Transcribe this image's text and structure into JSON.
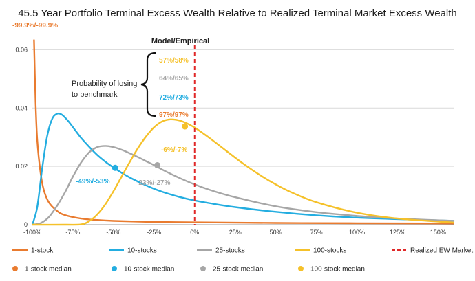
{
  "chart_data": {
    "type": "line",
    "title": "45.5 Year Portfolio Terminal Excess Wealth Relative to Realized Terminal Market Excess Wealth",
    "xlabel": "",
    "ylabel": "",
    "xlim": [
      -1.0,
      1.6
    ],
    "ylim": [
      0,
      0.07
    ],
    "x_ticks": [
      "-100%",
      "-75%",
      "-50%",
      "-25%",
      "0%",
      "25%",
      "50%",
      "75%",
      "100%",
      "125%",
      "150%"
    ],
    "x_tick_values": [
      -1.0,
      -0.75,
      -0.5,
      -0.25,
      0.0,
      0.25,
      0.5,
      0.75,
      1.0,
      1.25,
      1.5
    ],
    "y_ticks": [
      "0",
      "0.02",
      "0.04",
      "0.06"
    ],
    "y_tick_values": [
      0,
      0.02,
      0.04,
      0.06
    ],
    "grid": "horizontal",
    "colors": {
      "one_stock": "#E97B2F",
      "ten_stocks": "#23ADE0",
      "twentyfive_stocks": "#A6A6A6",
      "hundred_stocks": "#F5C12A",
      "market": "#E02828"
    },
    "series": [
      {
        "name": "1-stock",
        "color": "#E97B2F",
        "x": [
          -0.99,
          -0.98,
          -0.97,
          -0.95,
          -0.93,
          -0.9,
          -0.85,
          -0.8,
          -0.7,
          -0.6,
          -0.5,
          -0.3,
          0.0,
          0.5,
          1.0,
          1.6
        ],
        "y": [
          0.0635,
          0.042,
          0.029,
          0.018,
          0.012,
          0.0078,
          0.0048,
          0.0033,
          0.0021,
          0.0016,
          0.0013,
          0.001,
          0.0008,
          0.0006,
          0.0005,
          0.0004
        ]
      },
      {
        "name": "10-stocks",
        "color": "#23ADE0",
        "x": [
          -1.0,
          -0.97,
          -0.94,
          -0.91,
          -0.88,
          -0.85,
          -0.82,
          -0.78,
          -0.74,
          -0.7,
          -0.65,
          -0.6,
          -0.55,
          -0.5,
          -0.45,
          -0.4,
          -0.35,
          -0.3,
          -0.25,
          -0.2,
          -0.1,
          0.0,
          0.1,
          0.25,
          0.5,
          0.75,
          1.0,
          1.25,
          1.6
        ],
        "y": [
          0.0,
          0.006,
          0.019,
          0.03,
          0.036,
          0.038,
          0.0378,
          0.0356,
          0.0327,
          0.0298,
          0.0267,
          0.0239,
          0.0216,
          0.0196,
          0.0178,
          0.0162,
          0.0148,
          0.0135,
          0.0123,
          0.0113,
          0.0096,
          0.0083,
          0.0073,
          0.006,
          0.0044,
          0.0032,
          0.0024,
          0.0019,
          0.0013
        ]
      },
      {
        "name": "25-stocks",
        "color": "#A6A6A6",
        "x": [
          -1.0,
          -0.95,
          -0.9,
          -0.85,
          -0.8,
          -0.75,
          -0.7,
          -0.65,
          -0.6,
          -0.55,
          -0.5,
          -0.45,
          -0.4,
          -0.35,
          -0.3,
          -0.25,
          -0.2,
          -0.1,
          0.0,
          0.1,
          0.25,
          0.5,
          0.75,
          1.0,
          1.25,
          1.6
        ],
        "y": [
          0.0,
          0.0005,
          0.0025,
          0.0063,
          0.011,
          0.0165,
          0.0213,
          0.0248,
          0.0266,
          0.027,
          0.0266,
          0.0257,
          0.0245,
          0.0232,
          0.0218,
          0.0204,
          0.0189,
          0.0162,
          0.0138,
          0.0118,
          0.0094,
          0.0063,
          0.0043,
          0.003,
          0.0021,
          0.0013
        ]
      },
      {
        "name": "100-stocks",
        "color": "#F5C12A",
        "x": [
          -1.0,
          -0.8,
          -0.7,
          -0.65,
          -0.6,
          -0.55,
          -0.5,
          -0.45,
          -0.4,
          -0.35,
          -0.3,
          -0.25,
          -0.2,
          -0.15,
          -0.1,
          -0.05,
          0.0,
          0.05,
          0.1,
          0.2,
          0.3,
          0.4,
          0.5,
          0.6,
          0.75,
          1.0,
          1.25,
          1.6
        ],
        "y": [
          0.0,
          0.0,
          0.0001,
          0.0012,
          0.0035,
          0.007,
          0.0115,
          0.0165,
          0.0215,
          0.0262,
          0.0302,
          0.0334,
          0.0354,
          0.0361,
          0.0358,
          0.0348,
          0.0333,
          0.0314,
          0.0294,
          0.0251,
          0.0209,
          0.0171,
          0.0138,
          0.011,
          0.0077,
          0.0041,
          0.0021,
          0.0007
        ]
      }
    ],
    "market_line": {
      "name": "Realized EW Market",
      "x": 0.0,
      "color": "#E02828"
    },
    "medians": [
      {
        "name": "10-stock median",
        "x": -0.49,
        "y": 0.0195,
        "label": "-49%/-53%",
        "color": "#23ADE0"
      },
      {
        "name": "25-stock median",
        "x": -0.23,
        "y": 0.0204,
        "label": "-23%/-27%",
        "color": "#A6A6A6"
      },
      {
        "name": "100-stock median",
        "x": -0.06,
        "y": 0.0337,
        "label": "-6%/-7%",
        "color": "#F5C12A"
      }
    ],
    "one_stock_annotation": {
      "label": "-99.9%/-99.9%",
      "color": "#E97B2F"
    },
    "probability_box": {
      "heading": "Model/Empirical",
      "caption_line1": "Probability of losing",
      "caption_line2": "to benchmark",
      "entries": [
        {
          "label": "57%/58%",
          "color": "#F5C12A"
        },
        {
          "label": "64%/65%",
          "color": "#A6A6A6"
        },
        {
          "label": "72%/73%",
          "color": "#23ADE0"
        },
        {
          "label": "97%/97%",
          "color": "#E97B2F"
        }
      ]
    },
    "legend": {
      "placement": "bottom",
      "lines": [
        {
          "label": "1-stock",
          "color": "#E97B2F",
          "dashed": false
        },
        {
          "label": "10-stocks",
          "color": "#23ADE0",
          "dashed": false
        },
        {
          "label": "25-stocks",
          "color": "#A6A6A6",
          "dashed": false
        },
        {
          "label": "100-stocks",
          "color": "#F5C12A",
          "dashed": false
        },
        {
          "label": "Realized EW Market",
          "color": "#E02828",
          "dashed": true
        }
      ],
      "markers": [
        {
          "label": "1-stock median",
          "color": "#E97B2F"
        },
        {
          "label": "10-stock median",
          "color": "#23ADE0"
        },
        {
          "label": "25-stock median",
          "color": "#A6A6A6"
        },
        {
          "label": "100-stock median",
          "color": "#F5C12A"
        }
      ]
    }
  }
}
